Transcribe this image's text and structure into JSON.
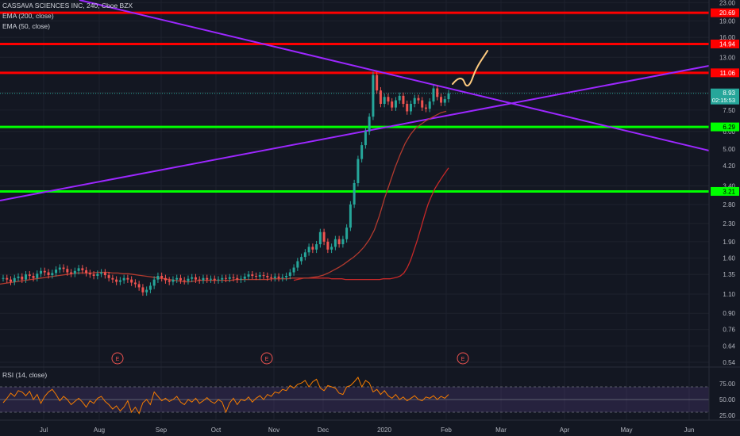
{
  "legend": {
    "symbol_line": "CASSAVA SCIENCES INC, 240, Cboe BZX",
    "ema200": "EMA (200, close)",
    "ema50": "EMA (50, close)",
    "rsi": "RSI (14, close)"
  },
  "colors": {
    "background": "#131722",
    "up_candle": "#26a69a",
    "down_candle": "#ef5350",
    "resistance_line": "#ff0000",
    "support_line": "#00ff00",
    "trendline": "#9c27ff",
    "ema200": "#c62828",
    "ema50": "#b23a2e",
    "rsi_line": "#f57c00",
    "rsi_band": "#7e57c2",
    "sketch": "#ffcc80"
  },
  "chart_data": {
    "type": "candlestick",
    "symbol": "CASSAVA SCIENCES INC",
    "interval": "240",
    "exchange": "Cboe BZX",
    "y_scale": "log",
    "ylim": [
      0.54,
      23.0
    ],
    "price_ticks": [
      23.0,
      19.0,
      16.0,
      13.0,
      11.06,
      9.0,
      7.5,
      6.0,
      5.0,
      4.2,
      3.4,
      2.8,
      2.3,
      1.9,
      1.6,
      1.35,
      1.1,
      0.9,
      0.76,
      0.64,
      0.54
    ],
    "time_labels": [
      "Jul",
      "Aug",
      "Sep",
      "Oct",
      "Nov",
      "Dec",
      "2020",
      "Feb",
      "Mar",
      "Apr",
      "May",
      "Jun"
    ],
    "horizontal_levels": [
      {
        "price": 20.69,
        "label": "20.69",
        "kind": "resistance"
      },
      {
        "price": 14.94,
        "label": "14.94",
        "kind": "resistance"
      },
      {
        "price": 11.06,
        "label": "11.06",
        "kind": "resistance"
      },
      {
        "price": 6.29,
        "label": "6.29",
        "kind": "support"
      },
      {
        "price": 3.21,
        "label": "3.21",
        "kind": "support"
      }
    ],
    "last_price": {
      "value": "8.93",
      "countdown": "02:15:53"
    },
    "earnings_markers": [
      "E",
      "E",
      "E"
    ],
    "closes": [
      1.3,
      1.28,
      1.25,
      1.3,
      1.32,
      1.28,
      1.35,
      1.33,
      1.3,
      1.36,
      1.4,
      1.38,
      1.34,
      1.37,
      1.42,
      1.45,
      1.43,
      1.38,
      1.36,
      1.4,
      1.44,
      1.41,
      1.37,
      1.35,
      1.33,
      1.36,
      1.38,
      1.34,
      1.3,
      1.28,
      1.25,
      1.27,
      1.3,
      1.28,
      1.24,
      1.22,
      1.18,
      1.12,
      1.15,
      1.2,
      1.28,
      1.33,
      1.3,
      1.27,
      1.25,
      1.28,
      1.3,
      1.27,
      1.26,
      1.29,
      1.31,
      1.28,
      1.27,
      1.3,
      1.28,
      1.29,
      1.27,
      1.28,
      1.3,
      1.29,
      1.31,
      1.3,
      1.28,
      1.29,
      1.32,
      1.35,
      1.33,
      1.32,
      1.34,
      1.33,
      1.31,
      1.3,
      1.32,
      1.3,
      1.31,
      1.33,
      1.38,
      1.45,
      1.55,
      1.62,
      1.7,
      1.8,
      1.75,
      1.85,
      2.1,
      1.9,
      1.75,
      1.8,
      1.95,
      1.85,
      1.95,
      2.2,
      2.8,
      3.5,
      4.5,
      5.2,
      6.0,
      7.0,
      10.8,
      9.2,
      8.0,
      8.6,
      8.2,
      7.7,
      8.3,
      8.7,
      8.0,
      7.4,
      8.0,
      8.5,
      8.3,
      7.7,
      7.6,
      8.2,
      9.4,
      8.6,
      8.1,
      8.4,
      8.93
    ],
    "ema50": [
      1.22,
      1.23,
      1.24,
      1.25,
      1.26,
      1.27,
      1.28,
      1.29,
      1.3,
      1.31,
      1.32,
      1.33,
      1.34,
      1.35,
      1.36,
      1.37,
      1.37,
      1.37,
      1.37,
      1.38,
      1.38,
      1.38,
      1.37,
      1.37,
      1.36,
      1.36,
      1.35,
      1.34,
      1.33,
      1.32,
      1.31,
      1.3,
      1.29,
      1.28,
      1.27,
      1.26,
      1.25,
      1.25,
      1.26,
      1.27,
      1.27,
      1.27,
      1.27,
      1.27,
      1.27,
      1.27,
      1.28,
      1.28,
      1.28,
      1.28,
      1.28,
      1.28,
      1.28,
      1.29,
      1.29,
      1.29,
      1.29,
      1.3,
      1.3,
      1.3,
      1.3,
      1.31,
      1.32,
      1.34,
      1.37,
      1.41,
      1.45,
      1.5,
      1.56,
      1.62,
      1.7,
      1.8,
      1.94,
      2.15,
      2.5,
      3.0,
      3.5,
      4.1,
      4.7,
      5.3,
      5.8,
      6.2,
      6.45,
      6.7,
      6.9,
      7.1,
      7.3,
      7.4
    ],
    "ema200": [
      1.27,
      1.28,
      1.29,
      1.3,
      1.3,
      1.3,
      1.3,
      1.3,
      1.3,
      1.3,
      1.3,
      1.29,
      1.29,
      1.29,
      1.29,
      1.28,
      1.28,
      1.28,
      1.28,
      1.28,
      1.28,
      1.28,
      1.28,
      1.28,
      1.28,
      1.28,
      1.29,
      1.29,
      1.29,
      1.3,
      1.31,
      1.33,
      1.37,
      1.45,
      1.57,
      1.75,
      1.95,
      2.2,
      2.5,
      2.8,
      3.05,
      3.3,
      3.5,
      3.7,
      3.9,
      4.1
    ],
    "rsi": {
      "levels": [
        70,
        50,
        30
      ],
      "ticks": [
        75.0,
        50.0,
        25.0
      ],
      "values": [
        45,
        52,
        60,
        55,
        64,
        62,
        56,
        63,
        50,
        58,
        44,
        55,
        62,
        66,
        58,
        48,
        55,
        50,
        42,
        47,
        52,
        46,
        38,
        48,
        44,
        52,
        55,
        47,
        42,
        35,
        40,
        32,
        38,
        48,
        30,
        38,
        28,
        45,
        50,
        42,
        62,
        55,
        48,
        52,
        47,
        50,
        55,
        46,
        42,
        50,
        46,
        52,
        44,
        48,
        53,
        47,
        44,
        50,
        46,
        30,
        45,
        52,
        42,
        50,
        48,
        54,
        46,
        52,
        56,
        50,
        58,
        55,
        62,
        60,
        66,
        64,
        72,
        68,
        74,
        76,
        80,
        70,
        78,
        82,
        68,
        64,
        72,
        70,
        68,
        60,
        58,
        70,
        72,
        78,
        85,
        70,
        80,
        76,
        62,
        66,
        58,
        64,
        56,
        52,
        58,
        50,
        54,
        48,
        52,
        56,
        50,
        48,
        54,
        52,
        56,
        50,
        55,
        52,
        58
      ]
    }
  }
}
